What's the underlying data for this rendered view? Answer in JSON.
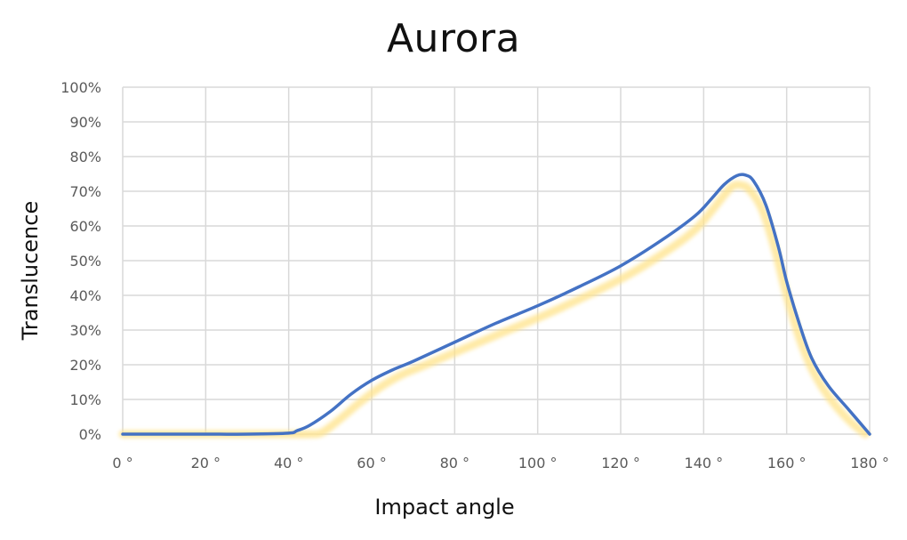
{
  "chart_data": {
    "type": "line",
    "title": "Aurora",
    "xlabel": "Impact angle",
    "ylabel": "Translucence",
    "xlim": [
      0,
      180
    ],
    "ylim": [
      0,
      100
    ],
    "x_ticks": [
      "0 °",
      "20 °",
      "40 °",
      "60 °",
      "80 °",
      "100 °",
      "120 °",
      "140 °",
      "160 °",
      "180 °"
    ],
    "y_ticks": [
      "0%",
      "10%",
      "20%",
      "30%",
      "40%",
      "50%",
      "60%",
      "70%",
      "80%",
      "90%",
      "100%"
    ],
    "grid": true,
    "series": [
      {
        "color": "#4472C4",
        "x": [
          0,
          10,
          20,
          30,
          40,
          42,
          45,
          50,
          55,
          60,
          65,
          70,
          80,
          90,
          100,
          110,
          120,
          130,
          138,
          142,
          145,
          148,
          150,
          152,
          155,
          158,
          160,
          163,
          166,
          170,
          175,
          180
        ],
        "y": [
          0,
          0,
          0,
          0,
          0.3,
          1,
          2.5,
          6.5,
          11.5,
          15.5,
          18.5,
          21,
          26.5,
          32,
          37,
          42.5,
          48.5,
          56,
          63,
          68,
          72,
          74.5,
          74.7,
          73,
          66,
          54,
          44,
          32,
          22,
          14,
          7,
          0
        ]
      },
      {
        "color": "#FFE389",
        "x": [
          0,
          10,
          20,
          30,
          40,
          45,
          48,
          52,
          57,
          62,
          67,
          72,
          82,
          92,
          102,
          112,
          122,
          132,
          138,
          142,
          145,
          147,
          149,
          151,
          154,
          157,
          160,
          163,
          166,
          170,
          175,
          179
        ],
        "y": [
          0,
          0,
          0,
          0,
          0,
          0,
          0.5,
          4,
          9,
          13.5,
          17,
          19.5,
          24.5,
          29.5,
          34.5,
          40,
          46,
          53.5,
          59,
          64.5,
          69,
          71.5,
          71.8,
          70.5,
          65,
          54,
          40,
          28,
          19,
          11,
          4,
          0
        ]
      }
    ]
  }
}
